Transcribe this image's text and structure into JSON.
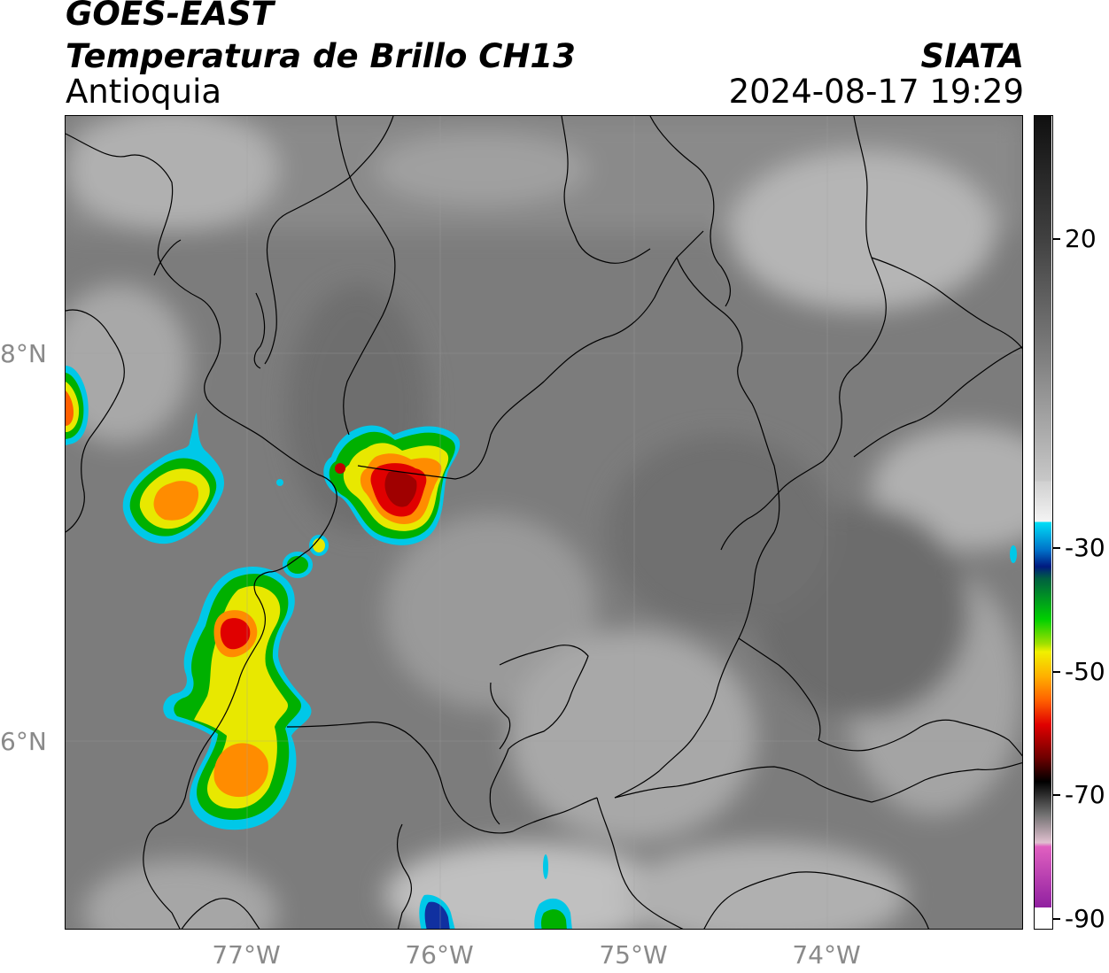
{
  "header": {
    "source": "GOES-EAST",
    "product": "Temperatura de Brillo CH13",
    "region": "Antioquia",
    "organization": "SIATA",
    "timestamp": "2024-08-17 19:29"
  },
  "map": {
    "lat_labels": [
      {
        "value": 8,
        "label": "8°N"
      },
      {
        "value": 6,
        "label": "6°N"
      }
    ],
    "lon_labels": [
      {
        "value": -77,
        "label": "77°W"
      },
      {
        "value": -76,
        "label": "76°W"
      },
      {
        "value": -75,
        "label": "75°W"
      },
      {
        "value": -74,
        "label": "74°W"
      }
    ],
    "extent": {
      "lon_min": -77.95,
      "lon_max": -72.99,
      "lat_min": 4.72,
      "lat_max": 8.94
    }
  },
  "colorbar": {
    "range": [
      -90,
      40
    ],
    "ticks": [
      {
        "value": 20,
        "label": "20"
      },
      {
        "value": -30,
        "label": "-30"
      },
      {
        "value": -50,
        "label": "-50"
      },
      {
        "value": -70,
        "label": "-70"
      },
      {
        "value": -90,
        "label": "-90"
      }
    ],
    "colors": {
      "cyan": "#00d8f0",
      "blue": "#1030a0",
      "green": "#00c000",
      "yellow": "#f0f000",
      "orange": "#ff8000",
      "red": "#e00000",
      "black": "#000000",
      "magenta": "#c040c0"
    }
  }
}
